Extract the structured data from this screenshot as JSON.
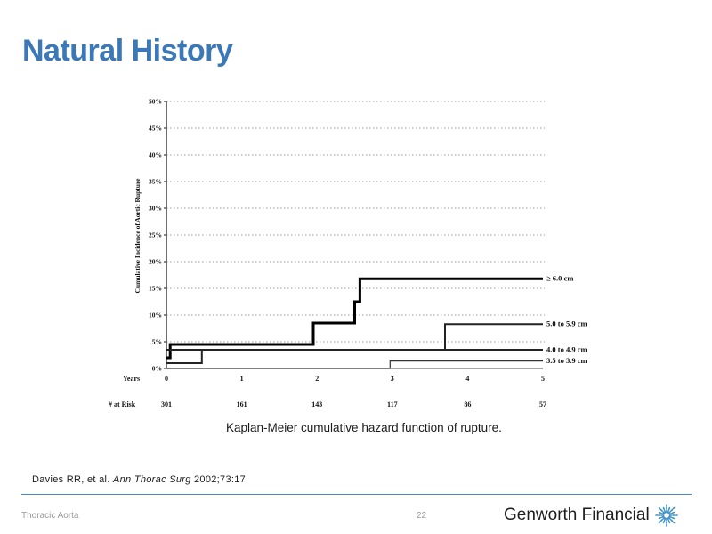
{
  "slide": {
    "title": "Natural History",
    "caption": "Kaplan-Meier cumulative hazard function of rupture.",
    "citation": {
      "authors": "Davies RR, et al.",
      "journal": "Ann Thorac Surg",
      "ref": "2002;73:17"
    },
    "footer": {
      "section": "Thoracic Aorta",
      "page": "22",
      "brand": "Genworth Financial",
      "brand_icon": "starburst-icon"
    }
  },
  "chart_data": {
    "type": "line",
    "step": true,
    "ylabel": "Cumulative Incidence of Aortic Rupture",
    "xlabel": "Years",
    "xlim": [
      0,
      5
    ],
    "ylim": [
      0,
      50
    ],
    "grid": true,
    "xticks": [
      "0",
      "1",
      "2",
      "3",
      "4",
      "5"
    ],
    "yticks": [
      "0%",
      "5%",
      "10%",
      "15%",
      "20%",
      "25%",
      "30%",
      "35%",
      "40%",
      "45%",
      "50%"
    ],
    "at_risk": {
      "label": "# at Risk",
      "values": [
        "301",
        "161",
        "143",
        "117",
        "86",
        "57"
      ]
    },
    "series": [
      {
        "name": "≥ 6.0 cm",
        "style": "thick",
        "x": [
          0,
          0.05,
          1.95,
          2.5,
          2.57,
          5.0
        ],
        "y": [
          2,
          4.5,
          8.5,
          12.5,
          16.8,
          16.8
        ]
      },
      {
        "name": "5.0 to 5.9 cm",
        "style": "medium",
        "x": [
          0,
          3.7,
          5.0
        ],
        "y": [
          3.5,
          8.3,
          8.3
        ]
      },
      {
        "name": "4.0 to 4.9 cm",
        "style": "medium",
        "x": [
          0,
          0.47,
          4.17,
          5.0
        ],
        "y": [
          1.0,
          3.5,
          3.5,
          3.5
        ]
      },
      {
        "name": "3.5 to 3.9 cm",
        "style": "thin",
        "x": [
          0,
          2.97,
          4.17,
          5.0
        ],
        "y": [
          0,
          1.4,
          1.4,
          1.4
        ]
      }
    ]
  }
}
